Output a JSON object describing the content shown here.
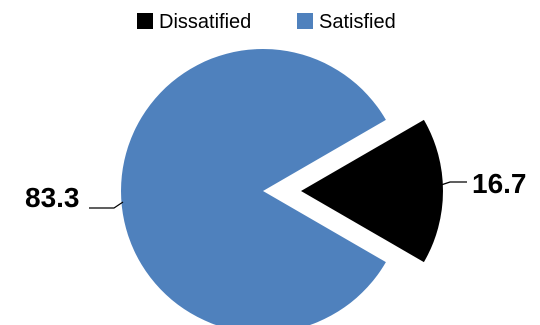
{
  "chart_data": {
    "type": "pie",
    "categories": [
      "Dissatified",
      "Satisfied"
    ],
    "values": [
      16.7,
      83.3
    ],
    "data_labels": [
      "16.7",
      "83.3"
    ],
    "colors": [
      "#000000",
      "#4f81bd"
    ],
    "legend": [
      "Dissatified",
      "Satisfied"
    ],
    "legend_position": "top",
    "exploded": [
      "Dissatified"
    ]
  }
}
